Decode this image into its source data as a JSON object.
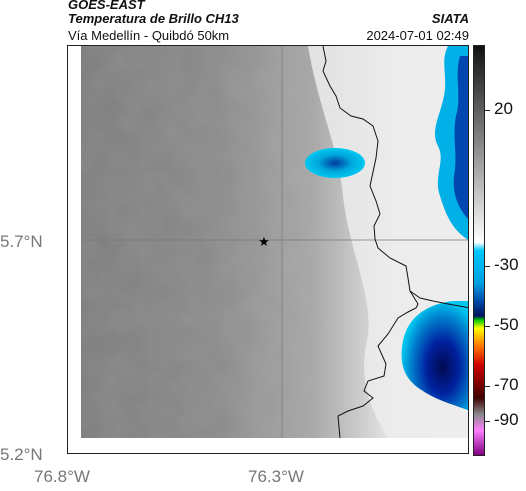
{
  "header": {
    "source": "GOES-EAST",
    "product": "Temperatura de Brillo CH13",
    "region": "Vía Medellín - Quibdó 50km",
    "brand": "SIATA",
    "datetime": "2024-07-01 02:49"
  },
  "axes": {
    "lat_labels": [
      "5.7°N",
      "5.2°N"
    ],
    "lon_labels": [
      "76.8°W",
      "76.3°W"
    ]
  },
  "colorbar": {
    "labels": [
      "20",
      "-30",
      "-50",
      "-70",
      "-90"
    ],
    "stops": [
      "#111111",
      "#ffffff",
      "#00c8ff",
      "#00a0e0",
      "#0050b0",
      "#001060",
      "#00c800",
      "#ffff00",
      "#ff8000",
      "#d00000",
      "#400000",
      "#888888",
      "#ff80ff",
      "#800080"
    ]
  },
  "map": {
    "marker_icon": "star-icon",
    "colors": {
      "base": "#8a8a8a",
      "border": "#111111",
      "grid": "#777777",
      "cold": "#00b7e8",
      "very_cold": "#002a90"
    }
  }
}
